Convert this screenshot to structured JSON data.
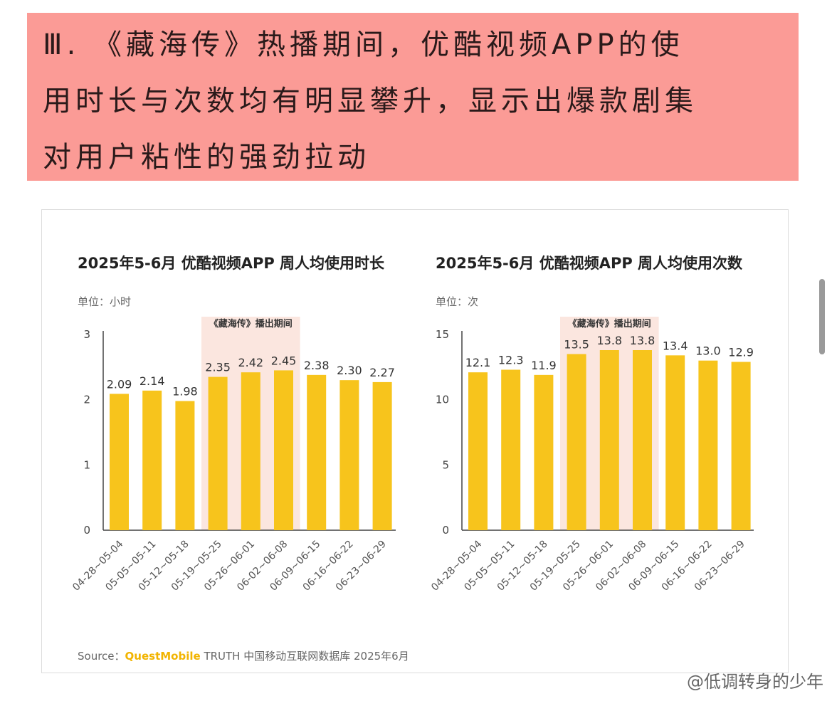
{
  "headline": {
    "lines": [
      "Ⅲ. 《藏海传》热播期间，优酷视频APP的使",
      "用时长与次数均有明显攀升，显示出爆款剧集",
      "对用户粘性的强劲拉动"
    ]
  },
  "highlight_label": "《藏海传》播出期间",
  "source": {
    "prefix": "Source：",
    "brand": "QuestMobile",
    "suffix": " TRUTH 中国移动互联网数据库 2025年6月"
  },
  "watermark": "@低调转身的少年",
  "colors": {
    "bar": "#f7c41c",
    "highlight_band": "#fbe6df",
    "headline_bg": "#fb9b96"
  },
  "chart_data": [
    {
      "type": "bar",
      "title": "2025年5-6月 优酷视频APP 周人均使用时长",
      "unit": "单位：小时",
      "categories": [
        "04-28~05-04",
        "05-05~05-11",
        "05-12~05-18",
        "05-19~05-25",
        "05-26~06-01",
        "06-02~06-08",
        "06-09~06-15",
        "06-16~06-22",
        "06-23~06-29"
      ],
      "values": [
        2.09,
        2.14,
        1.98,
        2.35,
        2.42,
        2.45,
        2.38,
        2.3,
        2.27
      ],
      "value_labels": [
        "2.09",
        "2.14",
        "1.98",
        "2.35",
        "2.42",
        "2.45",
        "2.38",
        "2.30",
        "2.27"
      ],
      "yticks": [
        "0",
        "1",
        "2",
        "3"
      ],
      "ylim": [
        0,
        3
      ],
      "highlight_categories": [
        "05-19~05-25",
        "05-26~06-01",
        "06-02~06-08"
      ]
    },
    {
      "type": "bar",
      "title": "2025年5-6月 优酷视频APP 周人均使用次数",
      "unit": "单位：次",
      "categories": [
        "04-28~05-04",
        "05-05~05-11",
        "05-12~05-18",
        "05-19~05-25",
        "05-26~06-01",
        "06-02~06-08",
        "06-09~06-15",
        "06-16~06-22",
        "06-23~06-29"
      ],
      "values": [
        12.1,
        12.3,
        11.9,
        13.5,
        13.8,
        13.8,
        13.4,
        13.0,
        12.9
      ],
      "value_labels": [
        "12.1",
        "12.3",
        "11.9",
        "13.5",
        "13.8",
        "13.8",
        "13.4",
        "13.0",
        "12.9"
      ],
      "yticks": [
        "0",
        "5",
        "10",
        "15"
      ],
      "ylim": [
        0,
        15
      ],
      "highlight_categories": [
        "05-19~05-25",
        "05-26~06-01",
        "06-02~06-08"
      ]
    }
  ]
}
